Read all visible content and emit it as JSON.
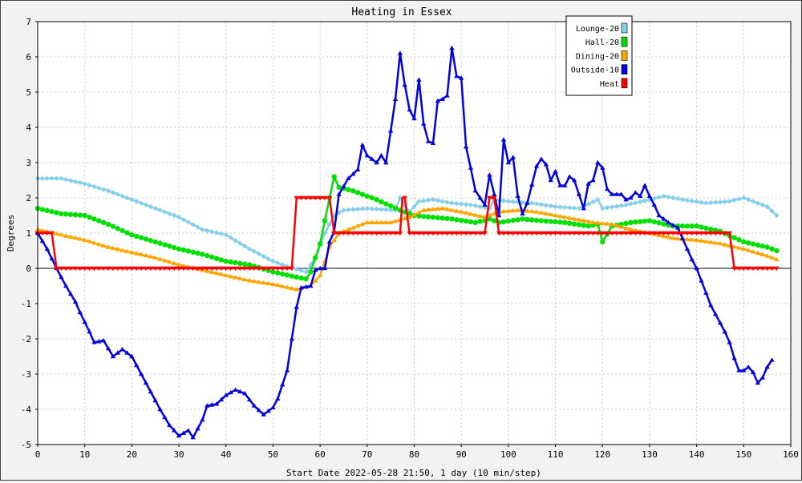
{
  "chart_data": {
    "type": "line",
    "title": "Heating in Essex",
    "xlabel": "Start Date 2022-05-28 21:50, 1 day (10 min/step)",
    "ylabel": "Degrees",
    "xlim": [
      0,
      160
    ],
    "ylim": [
      -5,
      7
    ],
    "xticks": [
      0,
      10,
      20,
      30,
      40,
      50,
      60,
      70,
      80,
      90,
      100,
      110,
      120,
      130,
      140,
      150,
      160
    ],
    "yticks": [
      -5,
      -4,
      -3,
      -2,
      -1,
      0,
      1,
      2,
      3,
      4,
      5,
      6,
      7
    ],
    "grid": true,
    "legend_position": "top-right",
    "series": [
      {
        "name": "Lounge-20",
        "color": "#87ceeb",
        "marker": "diamond",
        "points": [
          [
            0,
            2.55
          ],
          [
            5,
            2.55
          ],
          [
            10,
            2.4
          ],
          [
            15,
            2.2
          ],
          [
            20,
            1.95
          ],
          [
            25,
            1.7
          ],
          [
            30,
            1.45
          ],
          [
            35,
            1.1
          ],
          [
            40,
            0.95
          ],
          [
            45,
            0.55
          ],
          [
            50,
            0.2
          ],
          [
            53,
            0.05
          ],
          [
            57,
            -0.1
          ],
          [
            59,
            0.3
          ],
          [
            61,
            1.0
          ],
          [
            63,
            1.5
          ],
          [
            65,
            1.65
          ],
          [
            70,
            1.7
          ],
          [
            76,
            1.65
          ],
          [
            77,
            2.0
          ],
          [
            79,
            1.6
          ],
          [
            81,
            1.9
          ],
          [
            84,
            1.95
          ],
          [
            88,
            1.85
          ],
          [
            92,
            1.8
          ],
          [
            96,
            1.7
          ],
          [
            97,
            1.95
          ],
          [
            100,
            1.9
          ],
          [
            105,
            1.85
          ],
          [
            110,
            1.75
          ],
          [
            115,
            1.7
          ],
          [
            119,
            1.95
          ],
          [
            120,
            1.7
          ],
          [
            125,
            1.8
          ],
          [
            130,
            1.95
          ],
          [
            133,
            2.05
          ],
          [
            137,
            1.95
          ],
          [
            142,
            1.85
          ],
          [
            147,
            1.9
          ],
          [
            150,
            2.0
          ],
          [
            155,
            1.75
          ],
          [
            157,
            1.5
          ]
        ]
      },
      {
        "name": "Hall-20",
        "color": "#00e000",
        "marker": "circle",
        "points": [
          [
            0,
            1.7
          ],
          [
            5,
            1.55
          ],
          [
            10,
            1.5
          ],
          [
            15,
            1.25
          ],
          [
            20,
            0.95
          ],
          [
            25,
            0.75
          ],
          [
            30,
            0.55
          ],
          [
            35,
            0.4
          ],
          [
            40,
            0.2
          ],
          [
            45,
            0.1
          ],
          [
            50,
            -0.1
          ],
          [
            55,
            -0.25
          ],
          [
            57,
            -0.3
          ],
          [
            58,
            -0.1
          ],
          [
            60,
            0.7
          ],
          [
            62,
            2.0
          ],
          [
            63,
            2.6
          ],
          [
            64,
            2.3
          ],
          [
            67,
            2.2
          ],
          [
            72,
            1.95
          ],
          [
            77,
            1.65
          ],
          [
            80,
            1.5
          ],
          [
            84,
            1.45
          ],
          [
            88,
            1.4
          ],
          [
            93,
            1.3
          ],
          [
            96,
            1.4
          ],
          [
            98,
            1.3
          ],
          [
            103,
            1.4
          ],
          [
            107,
            1.35
          ],
          [
            112,
            1.3
          ],
          [
            117,
            1.2
          ],
          [
            119,
            1.25
          ],
          [
            120,
            0.75
          ],
          [
            122,
            1.2
          ],
          [
            126,
            1.3
          ],
          [
            130,
            1.35
          ],
          [
            135,
            1.2
          ],
          [
            140,
            1.2
          ],
          [
            145,
            1.05
          ],
          [
            150,
            0.75
          ],
          [
            155,
            0.6
          ],
          [
            157,
            0.5
          ]
        ]
      },
      {
        "name": "Dining-20",
        "color": "#ffa500",
        "marker": "triangle",
        "points": [
          [
            0,
            1.1
          ],
          [
            5,
            0.95
          ],
          [
            10,
            0.8
          ],
          [
            15,
            0.6
          ],
          [
            20,
            0.45
          ],
          [
            25,
            0.3
          ],
          [
            30,
            0.1
          ],
          [
            35,
            -0.05
          ],
          [
            40,
            -0.2
          ],
          [
            45,
            -0.35
          ],
          [
            50,
            -0.45
          ],
          [
            55,
            -0.6
          ],
          [
            58,
            -0.5
          ],
          [
            60,
            -0.2
          ],
          [
            62,
            0.6
          ],
          [
            64,
            1.0
          ],
          [
            66,
            1.1
          ],
          [
            70,
            1.3
          ],
          [
            75,
            1.3
          ],
          [
            79,
            1.45
          ],
          [
            82,
            1.65
          ],
          [
            86,
            1.7
          ],
          [
            90,
            1.6
          ],
          [
            95,
            1.45
          ],
          [
            98,
            1.6
          ],
          [
            102,
            1.65
          ],
          [
            106,
            1.6
          ],
          [
            110,
            1.5
          ],
          [
            114,
            1.4
          ],
          [
            118,
            1.3
          ],
          [
            122,
            1.25
          ],
          [
            126,
            1.1
          ],
          [
            130,
            1.0
          ],
          [
            135,
            0.85
          ],
          [
            140,
            0.8
          ],
          [
            145,
            0.7
          ],
          [
            150,
            0.55
          ],
          [
            155,
            0.35
          ],
          [
            157,
            0.25
          ]
        ]
      },
      {
        "name": "Outside-10",
        "color": "#0000e0",
        "marker": "triangle",
        "points": [
          [
            0,
            1.0
          ],
          [
            2,
            0.55
          ],
          [
            4,
            0.0
          ],
          [
            6,
            -0.5
          ],
          [
            8,
            -0.95
          ],
          [
            9,
            -1.25
          ],
          [
            11,
            -1.8
          ],
          [
            12,
            -2.1
          ],
          [
            14,
            -2.05
          ],
          [
            16,
            -2.5
          ],
          [
            18,
            -2.3
          ],
          [
            20,
            -2.5
          ],
          [
            22,
            -3.0
          ],
          [
            24,
            -3.5
          ],
          [
            26,
            -4.0
          ],
          [
            28,
            -4.45
          ],
          [
            30,
            -4.75
          ],
          [
            32,
            -4.6
          ],
          [
            33,
            -4.8
          ],
          [
            35,
            -4.3
          ],
          [
            36,
            -3.9
          ],
          [
            38,
            -3.85
          ],
          [
            40,
            -3.6
          ],
          [
            42,
            -3.45
          ],
          [
            44,
            -3.55
          ],
          [
            46,
            -3.9
          ],
          [
            48,
            -4.15
          ],
          [
            50,
            -3.95
          ],
          [
            51,
            -3.7
          ],
          [
            53,
            -2.9
          ],
          [
            54,
            -2.0
          ],
          [
            55,
            -1.1
          ],
          [
            56,
            -0.55
          ],
          [
            58,
            -0.5
          ],
          [
            59,
            -0.05
          ],
          [
            60,
            0.0
          ],
          [
            61,
            0.0
          ],
          [
            62,
            0.75
          ],
          [
            63,
            1.05
          ],
          [
            64,
            2.1
          ],
          [
            66,
            2.55
          ],
          [
            68,
            2.8
          ],
          [
            69,
            3.5
          ],
          [
            70,
            3.2
          ],
          [
            72,
            3.0
          ],
          [
            73,
            3.2
          ],
          [
            74,
            3.0
          ],
          [
            75,
            3.9
          ],
          [
            76,
            4.8
          ],
          [
            77,
            6.1
          ],
          [
            78,
            5.2
          ],
          [
            79,
            4.5
          ],
          [
            80,
            4.25
          ],
          [
            81,
            5.35
          ],
          [
            82,
            4.1
          ],
          [
            83,
            3.6
          ],
          [
            84,
            3.55
          ],
          [
            85,
            4.75
          ],
          [
            86,
            4.8
          ],
          [
            87,
            4.9
          ],
          [
            88,
            6.25
          ],
          [
            89,
            5.45
          ],
          [
            90,
            5.4
          ],
          [
            91,
            3.45
          ],
          [
            92,
            2.85
          ],
          [
            93,
            2.2
          ],
          [
            94,
            2.0
          ],
          [
            95,
            1.8
          ],
          [
            96,
            2.65
          ],
          [
            97,
            2.1
          ],
          [
            98,
            1.5
          ],
          [
            99,
            3.65
          ],
          [
            100,
            3.0
          ],
          [
            101,
            3.15
          ],
          [
            102,
            2.05
          ],
          [
            103,
            1.55
          ],
          [
            104,
            1.85
          ],
          [
            106,
            2.9
          ],
          [
            107,
            3.1
          ],
          [
            108,
            2.95
          ],
          [
            109,
            2.5
          ],
          [
            110,
            2.75
          ],
          [
            111,
            2.35
          ],
          [
            112,
            2.35
          ],
          [
            113,
            2.6
          ],
          [
            114,
            2.5
          ],
          [
            115,
            2.1
          ],
          [
            116,
            1.7
          ],
          [
            117,
            2.4
          ],
          [
            118,
            2.5
          ],
          [
            119,
            3.0
          ],
          [
            120,
            2.85
          ],
          [
            121,
            2.25
          ],
          [
            122,
            2.1
          ],
          [
            124,
            2.1
          ],
          [
            125,
            1.95
          ],
          [
            126,
            2.0
          ],
          [
            127,
            2.15
          ],
          [
            128,
            2.05
          ],
          [
            129,
            2.35
          ],
          [
            130,
            2.05
          ],
          [
            131,
            1.8
          ],
          [
            132,
            1.5
          ],
          [
            134,
            1.3
          ],
          [
            136,
            1.15
          ],
          [
            137,
            0.85
          ],
          [
            138,
            0.55
          ],
          [
            139,
            0.25
          ],
          [
            140,
            0.0
          ],
          [
            141,
            -0.35
          ],
          [
            142,
            -0.7
          ],
          [
            143,
            -1.05
          ],
          [
            144,
            -1.3
          ],
          [
            145,
            -1.55
          ],
          [
            146,
            -1.8
          ],
          [
            147,
            -2.1
          ],
          [
            148,
            -2.55
          ],
          [
            149,
            -2.9
          ],
          [
            150,
            -2.9
          ],
          [
            151,
            -2.8
          ],
          [
            152,
            -2.95
          ],
          [
            153,
            -3.25
          ],
          [
            154,
            -3.1
          ],
          [
            155,
            -2.8
          ],
          [
            156,
            -2.6
          ]
        ]
      },
      {
        "name": "Heat",
        "color": "#ff0000",
        "marker": "vtriangle",
        "points": [
          [
            0,
            1.0
          ],
          [
            3,
            1.0
          ],
          [
            4,
            0.0
          ],
          [
            54,
            0.0
          ],
          [
            55,
            2.0
          ],
          [
            62,
            2.0
          ],
          [
            63,
            1.0
          ],
          [
            77,
            1.0
          ],
          [
            77.5,
            2.0
          ],
          [
            78,
            2.0
          ],
          [
            79,
            1.0
          ],
          [
            95,
            1.0
          ],
          [
            96,
            2.0
          ],
          [
            97,
            2.0
          ],
          [
            98,
            1.0
          ],
          [
            147,
            1.0
          ],
          [
            148,
            0.0
          ],
          [
            157,
            0.0
          ]
        ]
      }
    ]
  }
}
